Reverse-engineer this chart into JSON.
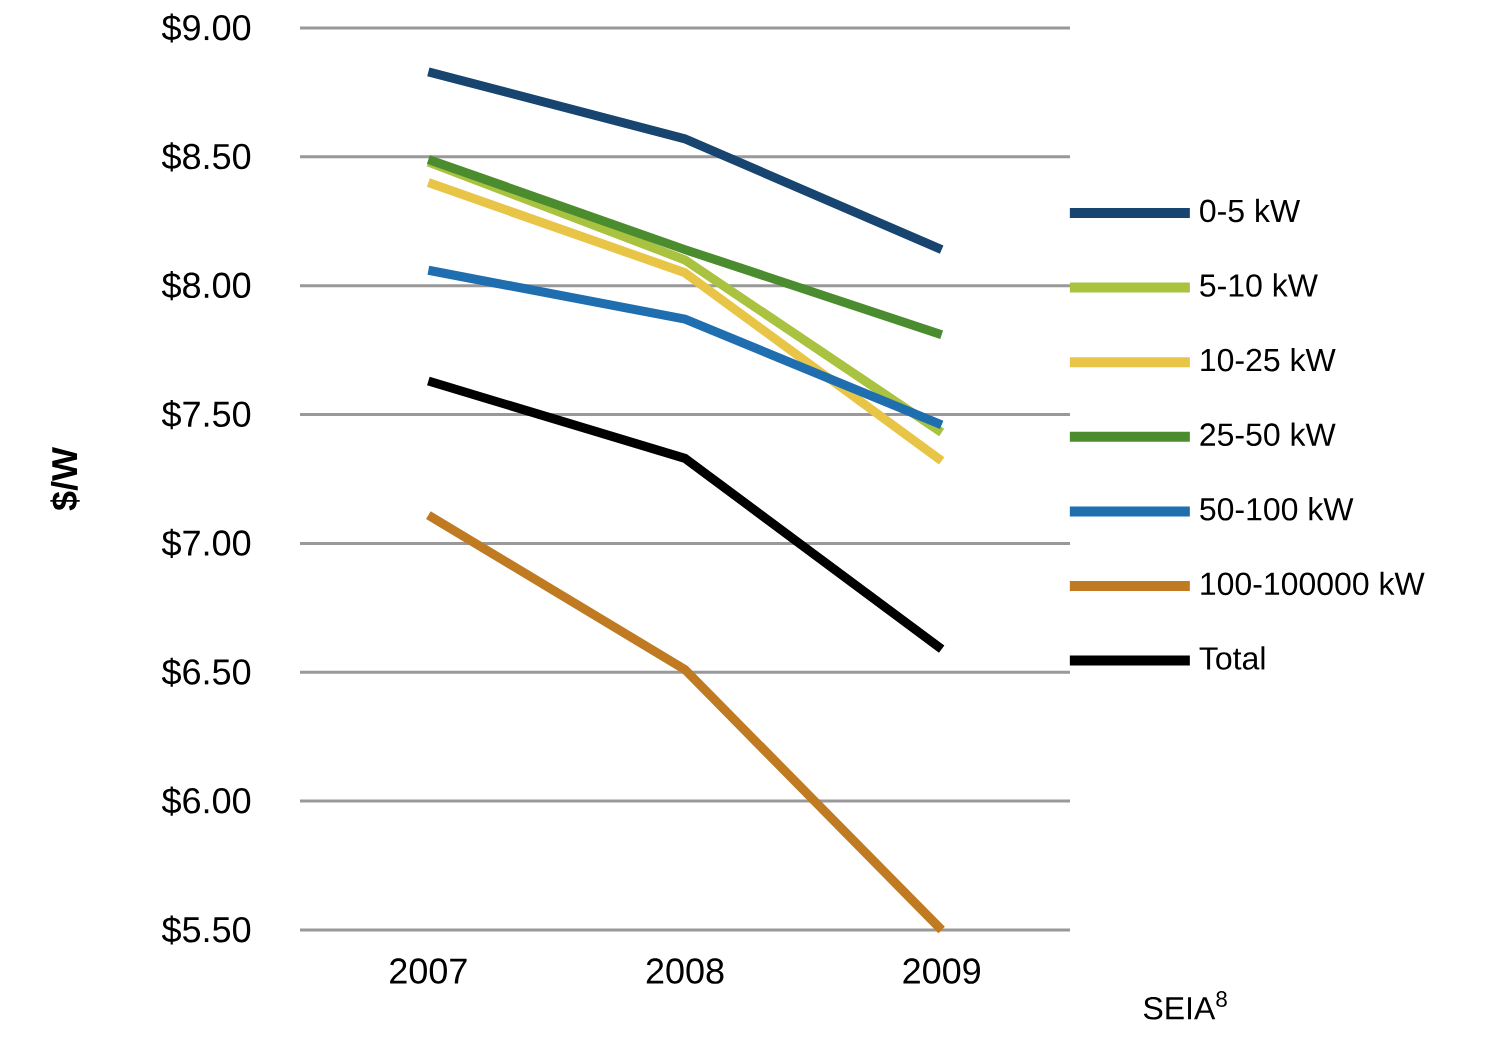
{
  "chart_data": {
    "type": "line",
    "ylabel": "$/W",
    "categories": [
      "2007",
      "2008",
      "2009"
    ],
    "series": [
      {
        "name": "0-5 kW",
        "color": "#17456f",
        "values": [
          8.83,
          8.57,
          8.14
        ]
      },
      {
        "name": "5-10 kW",
        "color": "#a9c23f",
        "values": [
          8.48,
          8.1,
          7.43
        ]
      },
      {
        "name": "10-25 kW",
        "color": "#e8c547",
        "values": [
          8.4,
          8.05,
          7.32
        ]
      },
      {
        "name": "25-50 kW",
        "color": "#4a8c2e",
        "values": [
          8.49,
          8.14,
          7.81
        ]
      },
      {
        "name": "50-100 kW",
        "color": "#1f6fb0",
        "values": [
          8.06,
          7.87,
          7.46
        ]
      },
      {
        "name": "100-100000 kW",
        "color": "#c07a22",
        "values": [
          7.11,
          6.51,
          5.5
        ]
      },
      {
        "name": "Total",
        "color": "#000000",
        "values": [
          7.63,
          7.33,
          6.59
        ]
      }
    ],
    "ylim": [
      5.5,
      9.0
    ],
    "yticks": [
      {
        "value": 5.5,
        "label": "$5.50"
      },
      {
        "value": 6.0,
        "label": "$6.00"
      },
      {
        "value": 6.5,
        "label": "$6.50"
      },
      {
        "value": 7.0,
        "label": "$7.00"
      },
      {
        "value": 7.5,
        "label": "$7.50"
      },
      {
        "value": 8.0,
        "label": "$8.00"
      },
      {
        "value": 8.5,
        "label": "$8.50"
      },
      {
        "value": 9.0,
        "label": "$9.00"
      }
    ],
    "grid": "y",
    "legend": "right",
    "marker": "none",
    "line_style": "solid",
    "annotations": [
      "SEIA$^{8}$"
    ]
  }
}
